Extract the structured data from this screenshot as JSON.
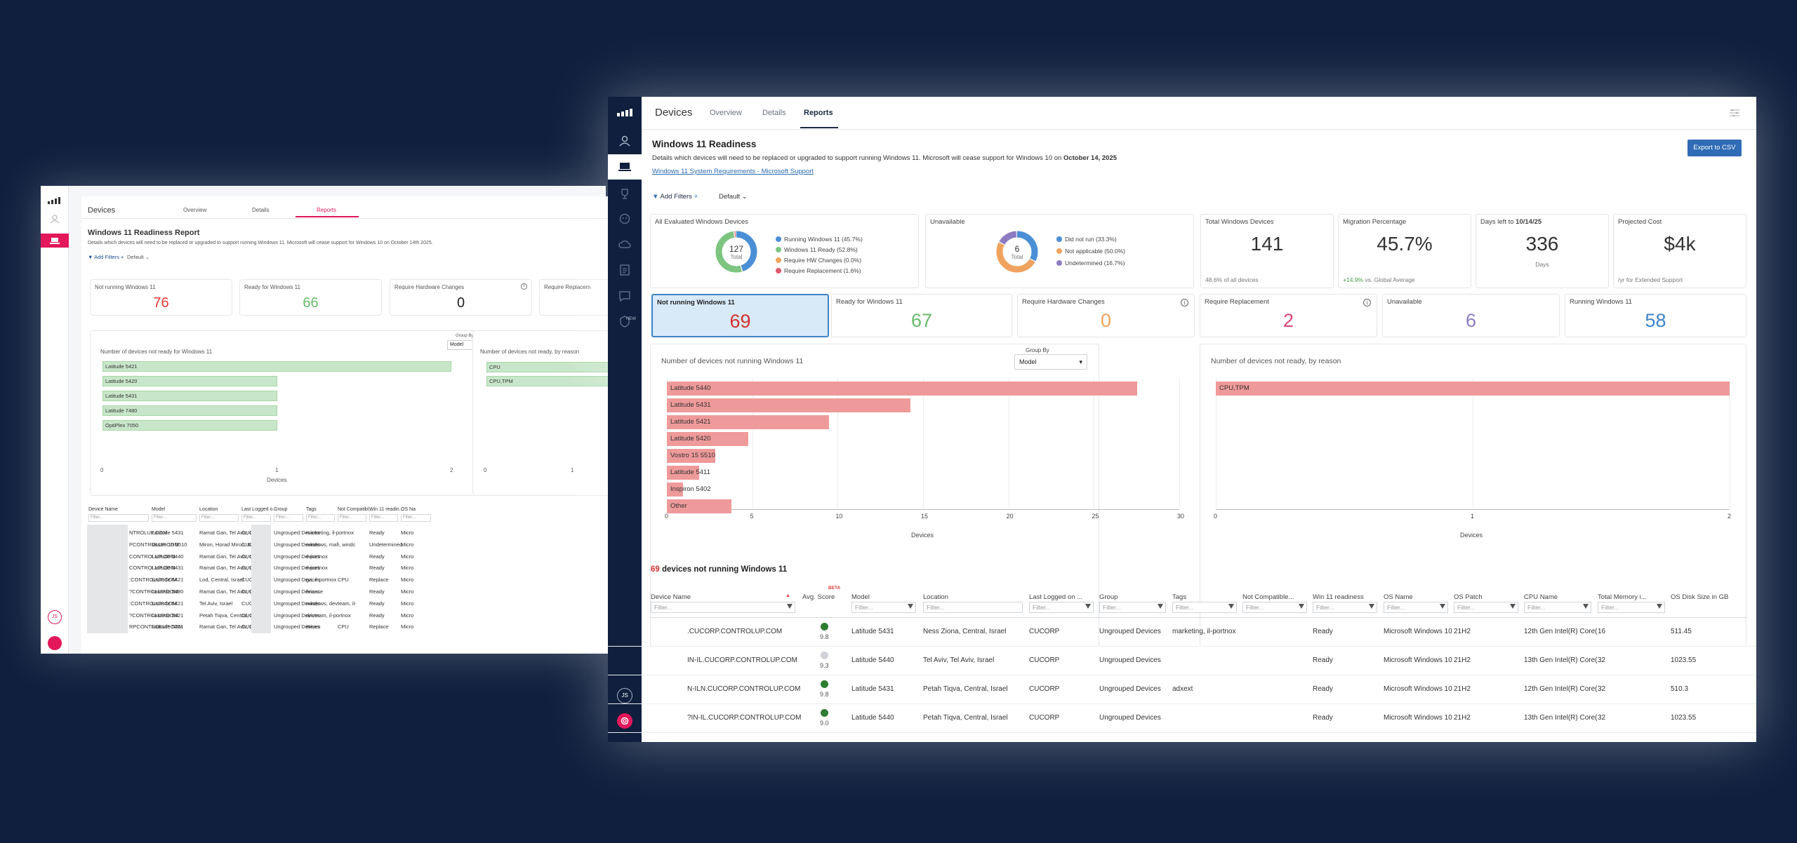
{
  "back": {
    "nav": {
      "title": "Devices",
      "tabs": [
        "Overview",
        "Details",
        "Reports"
      ]
    },
    "report_title": "Windows 11 Readiness Report",
    "report_desc": "Details which devices will need to be replaced or upgraded to support running Windows 11. Microsoft will cease support for Windows 10 on October 14th 2025.",
    "add_filters": "Add Filters",
    "default": "Default",
    "stats": [
      {
        "label": "Not running Windows 11",
        "value": "76",
        "color": "#e53935"
      },
      {
        "label": "Ready for Windows 11",
        "value": "66",
        "color": "#66bb6a"
      },
      {
        "label": "Require Hardware Changes",
        "value": "0",
        "color": "#222222"
      },
      {
        "label": "Require Replacem",
        "value": "",
        "color": "#222222"
      }
    ],
    "chart1": {
      "title": "Number of devices not ready for Windows 11",
      "group_by_label": "Group By",
      "group_by": "Model",
      "xlabel": "Devices",
      "ticks": [
        "0",
        "1",
        "2"
      ]
    },
    "chart1_data": {
      "type": "bar",
      "categories": [
        "Latitude 5421",
        "Latitude 5420",
        "Latitude 5431",
        "Latitude 7480",
        "OptiPlex 7050"
      ],
      "values": [
        2,
        1,
        1,
        1,
        1
      ]
    },
    "chart2": {
      "title": "Number of devices not ready, by reason",
      "ticks": [
        "0",
        "1"
      ]
    },
    "chart2_data": {
      "type": "bar",
      "categories": [
        "CPU",
        "CPU,TPM"
      ],
      "values": [
        2,
        2
      ]
    },
    "columns": [
      "Device Name",
      "Model",
      "Location",
      "Last Logged o...",
      "Group",
      "Tags",
      "Not Compatibl...",
      "Win 11 readin...",
      "OS Na"
    ],
    "filter_placeholder": "Filter...",
    "rows": [
      [
        "NTROLUP.COM",
        "Latitude 5431",
        "Ramat Gan, Tel Aviv, Israel",
        "CUC",
        "Ungrouped Devices",
        "marketing, il-portnox",
        "",
        "Ready",
        "Micro"
      ],
      [
        "PCONTROLUP.COM",
        "Vostro 15 5510",
        "Miron, Horad Miron, Belarus",
        "CUC",
        "Ungrouped Devices",
        "windows, mafi, windc",
        "",
        "Undetermined",
        "Micro"
      ],
      [
        "CONTROLUP.COM",
        "Latitude 5440",
        "Ramat Gan, Tel Aviv, Israel",
        "CUC",
        "Ungrouped Devices",
        "il-portnox",
        "",
        "Ready",
        "Micro"
      ],
      [
        "CONTROLUP.COM",
        "Latitude 5431",
        "Ramat Gan, Tel Aviv, Israel",
        "CUC",
        "Ungrouped Devices",
        "il-portnox",
        "",
        "Ready",
        "Micro"
      ],
      [
        ":CONTROLUP.COM",
        "Latitude 5421",
        "Lod, Central, Israel",
        "CUC",
        "Ungrouped Devices",
        "ga, il-portnox",
        "CPU",
        "Replace",
        "Micro"
      ],
      [
        "?CONTROLUP.COM",
        "Latitude 5480",
        "Ramat Gan, Tel Aviv, Israel",
        "CUC",
        "Ungrouped Devices",
        "finance",
        "",
        "Ready",
        "Micro"
      ],
      [
        ":CONTROLUP.COM",
        "Latitude 5421",
        "Tel Aviv, Israel",
        "CUC",
        "Ungrouped Devices",
        "windows, devteam, il-",
        "",
        "Ready",
        "Micro"
      ],
      [
        "?CONTROLUP.COM",
        "Latitude 5421",
        "Petah Tiqva, Central, Israel",
        "CUC",
        "Ungrouped Devices",
        "devteam, il-portnox",
        "",
        "Ready",
        "Micro"
      ],
      [
        "RPCONTROLUP.COM",
        "Latitude 5421",
        "Ramat Gan, Tel Aviv, Israel",
        "CUC",
        "Ungrouped Devices",
        "itteam",
        "CPU",
        "Replace",
        "Micro"
      ]
    ],
    "avatar": "JS"
  },
  "front": {
    "nav": {
      "title": "Devices",
      "tabs": [
        "Overview",
        "Details",
        "Reports"
      ],
      "active": "Reports"
    },
    "report_title": "Windows 11 Readiness",
    "report_desc": "Details which devices will need to be replaced or upgraded to support running Windows 11. Microsoft will cease support for Windows 10 on ",
    "report_date": "October 14, 2025",
    "req_link": "Windows 11 System Requirements - Microsoft Support",
    "export": "Export to CSV",
    "add_filters": "Add Filters",
    "default": "Default",
    "eval_card": {
      "title": "All Evaluated Windows Devices",
      "total": "127",
      "total_label": "Total",
      "legend": [
        "Running Windows 11 (45.7%)",
        "Windows 11 Ready (52.8%)",
        "Require HW Changes (0.0%)",
        "Require Replacement (1.6%)"
      ],
      "colors": [
        "#4a8fd6",
        "#7cc47f",
        "#f0a35e",
        "#e05a6d"
      ],
      "shares": [
        45.7,
        52.8,
        0.0,
        1.6
      ]
    },
    "unavail_card": {
      "title": "Unavailable",
      "total": "6",
      "total_label": "Total",
      "legend": [
        "Did not run (33.3%)",
        "Not applicable (50.0%)",
        "Undetermined (16.7%)"
      ],
      "colors": [
        "#4a8fd6",
        "#f0a35e",
        "#8e7cc3"
      ],
      "shares": [
        33.3,
        50.0,
        16.7
      ]
    },
    "total_card": {
      "title": "Total Windows Devices",
      "value": "141",
      "sub": "48.6% of all devices"
    },
    "migration_card": {
      "title": "Migration Percentage",
      "value": "45.7%",
      "delta": "+14.9%",
      "delta_sub": "vs. Global Average"
    },
    "days_card": {
      "title": "Days left to",
      "date": "10/14/25",
      "value": "336",
      "sub": "Days"
    },
    "cost_card": {
      "title": "Projected Cost",
      "value": "$4k",
      "sub": "/yr for Extended Support"
    },
    "stats": [
      {
        "label": "Not running Windows 11",
        "value": "69",
        "color": "#d32f2f",
        "info": false
      },
      {
        "label": "Ready for Windows 11",
        "value": "67",
        "color": "#66bb6a",
        "info": false
      },
      {
        "label": "Require Hardware Changes",
        "value": "0",
        "color": "#f0a35e",
        "info": true
      },
      {
        "label": "Require Replacement",
        "value": "2",
        "color": "#d9457a",
        "info": true
      },
      {
        "label": "Unavailable",
        "value": "6",
        "color": "#8e7cc3",
        "info": false
      },
      {
        "label": "Running Windows 11",
        "value": "58",
        "color": "#3e84c6",
        "info": false
      }
    ],
    "chart1": {
      "title": "Number of devices not running Windows 11",
      "group_by_label": "Group By",
      "group_by": "Model",
      "xlabel": "Devices",
      "ticks": [
        "0",
        "5",
        "10",
        "15",
        "20",
        "25",
        "30"
      ]
    },
    "chart_data": [
      {
        "type": "bar",
        "categories": [
          "Latitude 5440",
          "Latitude 5431",
          "Latitude 5421",
          "Latitude 5420",
          "Vostro 15 5510",
          "Latitude 5411",
          "Inspiron 5402",
          "Other"
        ],
        "values": [
          29,
          15,
          10,
          5,
          3,
          2,
          1,
          4
        ],
        "xlabel": "Devices",
        "xlim": [
          0,
          30
        ]
      },
      {
        "type": "bar",
        "categories": [
          "CPU,TPM"
        ],
        "values": [
          2
        ],
        "xlabel": "Devices",
        "xlim": [
          0,
          2
        ]
      }
    ],
    "chart2": {
      "title": "Number of devices not ready, by reason",
      "xlabel": "Devices",
      "ticks": [
        "0",
        "1",
        "2"
      ]
    },
    "table_count": "69",
    "table_title": "devices not running Windows 11",
    "beta": "BETA",
    "filter_placeholder": "Filter...",
    "columns": [
      "Device Name",
      "Avg. Score",
      "Model",
      "Location",
      "Last Logged on ...",
      "Group",
      "Tags",
      "Not Compatible...",
      "Win 11 readiness",
      "OS Name",
      "OS Patch",
      "CPU Name",
      "Total Memory i...",
      "OS Disk Size in GB"
    ],
    "rows": [
      {
        "name": ".CUCORP.CONTROLUP.COM",
        "score": "9.8",
        "score_color": "#2e7d32",
        "model": "Latitude 5431",
        "location": "Ness Ziona, Central, Israel",
        "logged": "CUCORP",
        "group": "Ungrouped Devices",
        "tags": "marketing, il-portnox",
        "notcomp": "",
        "ready": "Ready",
        "os": "Microsoft Windows 10",
        "patch": "21H2",
        "cpu": "12th Gen Intel(R) Core(",
        "mem": "16",
        "disk": "511.45"
      },
      {
        "name": "IN-IL.CUCORP.CONTROLUP.COM",
        "score": "9.3",
        "score_color": "#cfd3d8",
        "model": "Latitude 5440",
        "location": "Tel Aviv, Tel Aviv, Israel",
        "logged": "CUCORP",
        "group": "Ungrouped Devices",
        "tags": "",
        "notcomp": "",
        "ready": "Ready",
        "os": "Microsoft Windows 10",
        "patch": "21H2",
        "cpu": "13th Gen Intel(R) Core(",
        "mem": "32",
        "disk": "1023.55"
      },
      {
        "name": "N-ILN.CUCORP.CONTROLUP.COM",
        "score": "9.8",
        "score_color": "#2e7d32",
        "model": "Latitude 5431",
        "location": "Petah Tiqva, Central, Israel",
        "logged": "CUCORP",
        "group": "Ungrouped Devices",
        "tags": "adxext",
        "notcomp": "",
        "ready": "Ready",
        "os": "Microsoft Windows 10",
        "patch": "21H2",
        "cpu": "12th Gen Intel(R) Core(",
        "mem": "32",
        "disk": "510.3"
      },
      {
        "name": "?IN-IL.CUCORP.CONTROLUP.COM",
        "score": "9.0",
        "score_color": "#2e7d32",
        "model": "Latitude 5440",
        "location": "Petah Tiqva, Central, Israel",
        "logged": "CUCORP",
        "group": "Ungrouped Devices",
        "tags": "",
        "notcomp": "",
        "ready": "Ready",
        "os": "Microsoft Windows 10",
        "patch": "21H2",
        "cpu": "13th Gen Intel(R) Core(",
        "mem": "32",
        "disk": "1023.55"
      }
    ],
    "avatar": "JS",
    "new_badge": "NEW"
  }
}
